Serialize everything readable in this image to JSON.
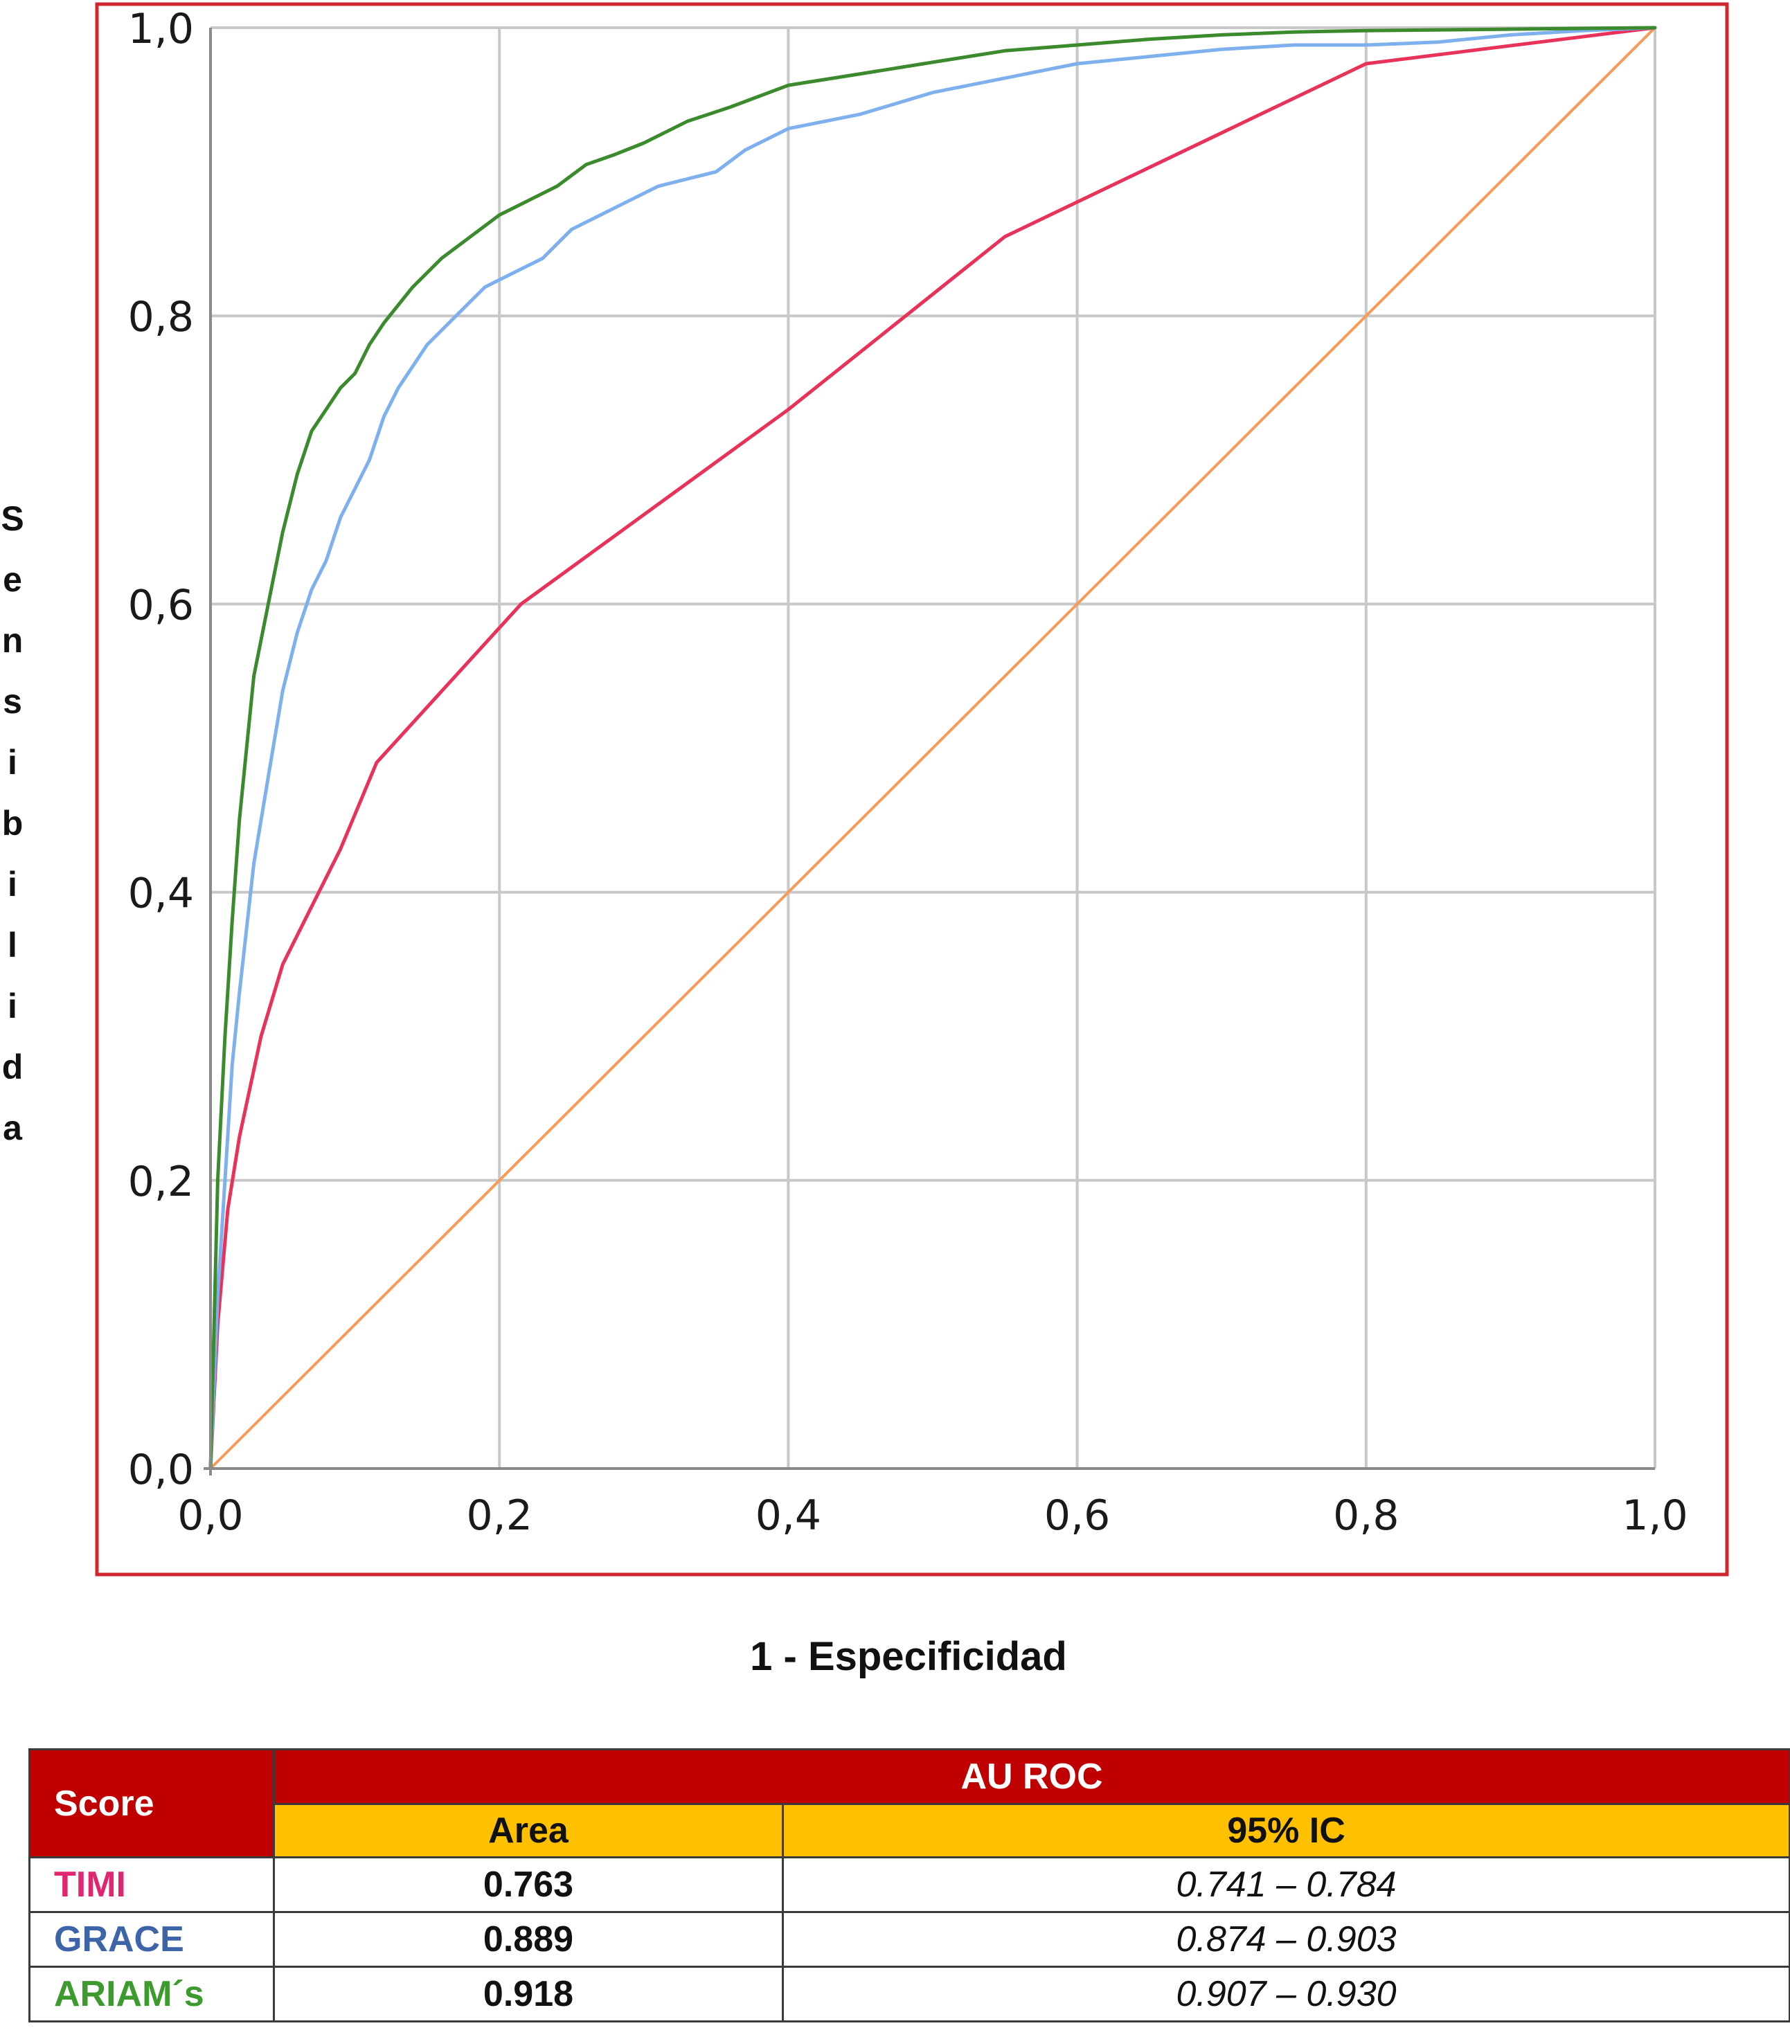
{
  "chart_data": {
    "type": "line",
    "title": "",
    "xlabel": "1 - Especificidad",
    "ylabel": "Sensibilida",
    "xlim": [
      0,
      1
    ],
    "ylim": [
      0,
      1
    ],
    "x_ticks": [
      "0,0",
      "0,2",
      "0,4",
      "0,6",
      "0,8",
      "1,0"
    ],
    "y_ticks": [
      "0,0",
      "0,2",
      "0,4",
      "0,6",
      "0,8",
      "1,0"
    ],
    "grid": true,
    "series": [
      {
        "name": "TIMI",
        "color": "#e8325a",
        "x": [
          0.0,
          0.005,
          0.012,
          0.02,
          0.035,
          0.05,
          0.07,
          0.09,
          0.115,
          0.215,
          0.4,
          0.55,
          0.8,
          1.0
        ],
        "y": [
          0.0,
          0.1,
          0.18,
          0.23,
          0.3,
          0.35,
          0.39,
          0.43,
          0.49,
          0.6,
          0.735,
          0.855,
          0.975,
          1.0
        ]
      },
      {
        "name": "GRACE",
        "color": "#7eb0ee",
        "x": [
          0.0,
          0.005,
          0.01,
          0.015,
          0.02,
          0.03,
          0.04,
          0.05,
          0.06,
          0.07,
          0.08,
          0.09,
          0.1,
          0.11,
          0.12,
          0.13,
          0.15,
          0.17,
          0.19,
          0.21,
          0.23,
          0.25,
          0.27,
          0.29,
          0.31,
          0.33,
          0.35,
          0.37,
          0.4,
          0.45,
          0.5,
          0.55,
          0.6,
          0.65,
          0.7,
          0.75,
          0.8,
          0.85,
          0.9,
          0.95,
          1.0
        ],
        "y": [
          0.0,
          0.12,
          0.2,
          0.28,
          0.33,
          0.42,
          0.48,
          0.54,
          0.58,
          0.61,
          0.63,
          0.66,
          0.68,
          0.7,
          0.73,
          0.75,
          0.78,
          0.8,
          0.82,
          0.83,
          0.84,
          0.86,
          0.87,
          0.88,
          0.89,
          0.895,
          0.9,
          0.915,
          0.93,
          0.94,
          0.955,
          0.965,
          0.975,
          0.98,
          0.985,
          0.988,
          0.988,
          0.99,
          0.995,
          0.998,
          1.0
        ]
      },
      {
        "name": "ARIAM´s",
        "color": "#3c8a2e",
        "x": [
          0.0,
          0.005,
          0.01,
          0.015,
          0.02,
          0.025,
          0.03,
          0.04,
          0.05,
          0.06,
          0.07,
          0.08,
          0.09,
          0.1,
          0.11,
          0.12,
          0.14,
          0.16,
          0.18,
          0.2,
          0.22,
          0.24,
          0.26,
          0.28,
          0.3,
          0.33,
          0.36,
          0.4,
          0.45,
          0.5,
          0.55,
          0.6,
          0.65,
          0.7,
          0.75,
          0.8,
          0.9,
          1.0
        ],
        "y": [
          0.0,
          0.2,
          0.3,
          0.38,
          0.45,
          0.5,
          0.55,
          0.6,
          0.65,
          0.69,
          0.72,
          0.735,
          0.75,
          0.76,
          0.78,
          0.795,
          0.82,
          0.84,
          0.855,
          0.87,
          0.88,
          0.89,
          0.905,
          0.912,
          0.92,
          0.935,
          0.945,
          0.96,
          0.968,
          0.976,
          0.984,
          0.988,
          0.992,
          0.995,
          0.997,
          0.998,
          0.999,
          1.0
        ]
      },
      {
        "name": "",
        "color": "#f79a5a",
        "x": [
          0.0,
          1.0
        ],
        "y": [
          0.0,
          1.0
        ]
      }
    ]
  },
  "table": {
    "score_header": "Score",
    "auc_header": "AU ROC",
    "area_header": "Area",
    "ci_header": "95% IC",
    "rows": [
      {
        "name": "TIMI",
        "color": "#e0266e",
        "area": "0.763",
        "ci": "0.741 – 0.784"
      },
      {
        "name": "GRACE",
        "color": "#3e64a8",
        "area": "0.889",
        "ci": "0.874 – 0.903"
      },
      {
        "name": "ARIAM´s",
        "color": "#3c9a2e",
        "area": "0.918",
        "ci": "0.907 – 0.930"
      }
    ]
  },
  "colors": {
    "frame": "#d0272d",
    "grid": "#c8c8c8",
    "header_red": "#c00000",
    "header_yellow": "#ffc000"
  }
}
